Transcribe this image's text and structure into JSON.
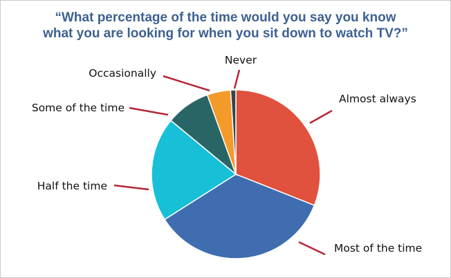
{
  "chart_data": {
    "type": "pie",
    "title_lines": [
      "“What percentage of the time would you say you know",
      "what you are looking for when you sit down to watch TV?”"
    ],
    "start_angle_deg": 0,
    "direction": "clockwise",
    "slices": [
      {
        "label": "Almost always",
        "value": 31,
        "color": "#e0523d"
      },
      {
        "label": "Most of the time",
        "value": 35,
        "color": "#3f6db0"
      },
      {
        "label": "Half the time",
        "value": 20,
        "color": "#17c0d6"
      },
      {
        "label": "Some of the time",
        "value": 8.5,
        "color": "#2a6565"
      },
      {
        "label": "Occasionally",
        "value": 4.5,
        "color": "#f39a2b"
      },
      {
        "label": "Never",
        "value": 1,
        "color": "#3a4548"
      }
    ],
    "leader_color": "#b42636"
  }
}
